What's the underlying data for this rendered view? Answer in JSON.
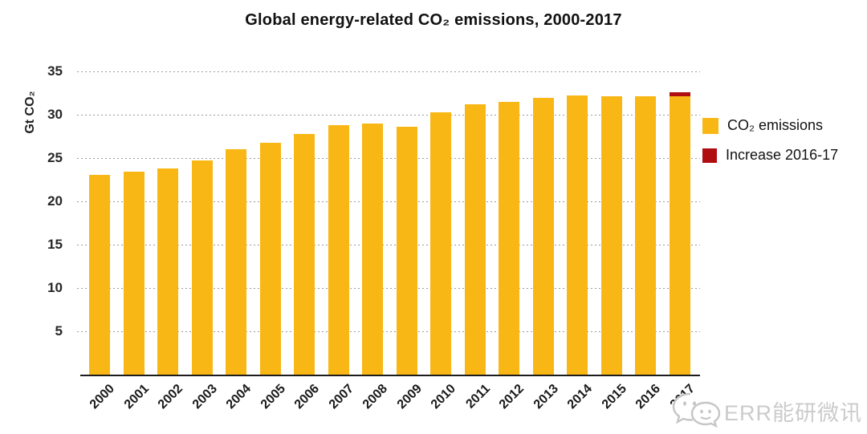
{
  "title": "Global energy-related CO₂ emissions, 2000-2017",
  "y_axis": {
    "label": "Gt CO₂",
    "ticks": [
      5,
      10,
      15,
      20,
      25,
      30,
      35
    ]
  },
  "legend": [
    {
      "label": "CO₂ emissions",
      "color": "#F9B715"
    },
    {
      "label": "Increase 2016-17",
      "color": "#B00D11"
    }
  ],
  "watermark": {
    "text": "ERR能研微讯",
    "icon": "wechat-bubbles-icon",
    "color": "#cbcbcb"
  },
  "colors": {
    "bar_yellow": "#F9B715",
    "increase_red": "#B00D11",
    "gridline_gray": "#9a9a9a",
    "axis_black": "#1c1c1c"
  },
  "chart_data": {
    "type": "bar",
    "title": "Global energy-related CO₂ emissions, 2000-2017",
    "xlabel": "",
    "ylabel": "Gt CO₂",
    "ylim": [
      0,
      35
    ],
    "yticks": [
      5,
      10,
      15,
      20,
      25,
      30,
      35
    ],
    "grid": "horizontal dotted every 5",
    "legend_position": "right",
    "stacked": true,
    "categories": [
      "2000",
      "2001",
      "2002",
      "2003",
      "2004",
      "2005",
      "2006",
      "2007",
      "2008",
      "2009",
      "2010",
      "2011",
      "2012",
      "2013",
      "2014",
      "2015",
      "2016",
      "2017"
    ],
    "series": [
      {
        "name": "CO₂ emissions",
        "color": "#F9B715",
        "values": [
          23.1,
          23.4,
          23.8,
          24.7,
          26.0,
          26.8,
          27.8,
          28.8,
          29.0,
          28.6,
          30.3,
          31.2,
          31.5,
          31.9,
          32.2,
          32.1,
          32.1,
          32.1
        ]
      },
      {
        "name": "Increase 2016-17",
        "color": "#B00D11",
        "values": [
          0,
          0,
          0,
          0,
          0,
          0,
          0,
          0,
          0,
          0,
          0,
          0,
          0,
          0,
          0,
          0,
          0,
          0.5
        ]
      }
    ]
  }
}
